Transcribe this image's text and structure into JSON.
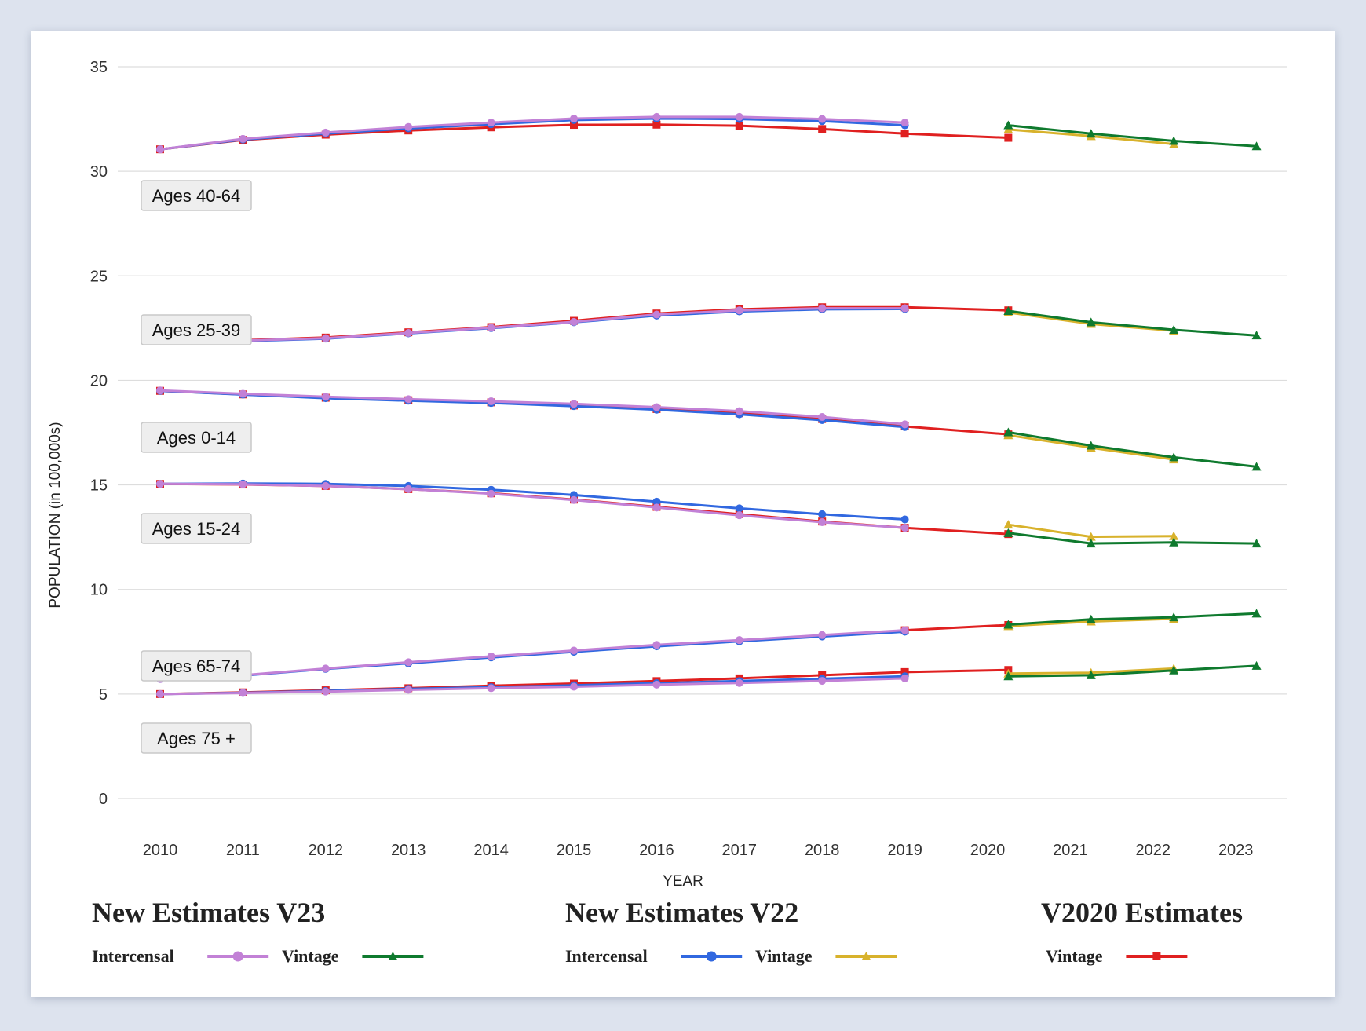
{
  "colors": {
    "v23_intercensal": "#c281d6",
    "v23_vintage": "#0f7a2e",
    "v22_intercensal": "#3168e0",
    "v22_vintage": "#d8b22c",
    "v2020_vintage": "#e02020"
  },
  "chart_data": {
    "type": "line",
    "title": "",
    "xlabel": "YEAR",
    "ylabel": "POPULATION (in 100,000s)",
    "ylim": [
      0,
      35
    ],
    "yticks": [
      "0",
      "5",
      "10",
      "15",
      "20",
      "25",
      "30",
      "35"
    ],
    "xticks": [
      "2010",
      "2011",
      "2012",
      "2013",
      "2014",
      "2015",
      "2016",
      "2017",
      "2018",
      "2019",
      "2020",
      "2021",
      "2022",
      "2023"
    ],
    "grid": true,
    "group_labels": [
      "Ages 40-64",
      "Ages 25-39",
      "Ages 0-14",
      "Ages 15-24",
      "Ages 65-74",
      "Ages 75 +"
    ],
    "legend": {
      "groups": [
        {
          "title": "New Estimates V23",
          "items": [
            {
              "label": "Intercensal",
              "series": "v23_intercensal"
            },
            {
              "label": "Vintage",
              "series": "v23_vintage"
            }
          ]
        },
        {
          "title": "New Estimates V22",
          "items": [
            {
              "label": "Intercensal",
              "series": "v22_intercensal"
            },
            {
              "label": "Vintage",
              "series": "v22_vintage"
            }
          ]
        },
        {
          "title": "V2020 Estimates",
          "items": [
            {
              "label": "Vintage",
              "series": "v2020_vintage"
            }
          ]
        }
      ]
    },
    "groups": [
      {
        "name": "Ages 40-64",
        "v2020_vintage": {
          "x": [
            2010,
            2011,
            2012,
            2013,
            2014,
            2015,
            2016,
            2017,
            2018,
            2019,
            2020
          ],
          "y": [
            31.05,
            31.5,
            31.75,
            31.95,
            32.1,
            32.22,
            32.23,
            32.18,
            32.02,
            31.8,
            31.6
          ]
        },
        "v22_intercensal": {
          "x": [
            2010,
            2011,
            2012,
            2013,
            2014,
            2015,
            2016,
            2017,
            2018,
            2019
          ],
          "y": [
            31.05,
            31.52,
            31.8,
            32.05,
            32.25,
            32.45,
            32.52,
            32.5,
            32.4,
            32.2
          ]
        },
        "v23_intercensal": {
          "x": [
            2010,
            2011,
            2012,
            2013,
            2014,
            2015,
            2016,
            2017,
            2018,
            2019
          ],
          "y": [
            31.05,
            31.55,
            31.85,
            32.12,
            32.33,
            32.52,
            32.6,
            32.6,
            32.5,
            32.33
          ]
        },
        "v22_vintage": {
          "x": [
            2020,
            2021,
            2022
          ],
          "y": [
            32.0,
            31.68,
            31.3
          ]
        },
        "v23_vintage": {
          "x": [
            2020,
            2021,
            2022,
            2023
          ],
          "y": [
            32.2,
            31.8,
            31.45,
            31.2
          ]
        }
      },
      {
        "name": "Ages 25-39",
        "v2020_vintage": {
          "x": [
            2010,
            2011,
            2012,
            2013,
            2014,
            2015,
            2016,
            2017,
            2018,
            2019,
            2020
          ],
          "y": [
            21.9,
            21.92,
            22.05,
            22.3,
            22.55,
            22.85,
            23.2,
            23.4,
            23.5,
            23.5,
            23.35
          ]
        },
        "v22_intercensal": {
          "x": [
            2010,
            2011,
            2012,
            2013,
            2014,
            2015,
            2016,
            2017,
            2018,
            2019
          ],
          "y": [
            21.88,
            21.88,
            22.0,
            22.25,
            22.5,
            22.78,
            23.1,
            23.3,
            23.4,
            23.42
          ]
        },
        "v23_intercensal": {
          "x": [
            2010,
            2011,
            2012,
            2013,
            2014,
            2015,
            2016,
            2017,
            2018,
            2019
          ],
          "y": [
            21.88,
            21.9,
            22.02,
            22.27,
            22.52,
            22.8,
            23.15,
            23.35,
            23.45,
            23.45
          ]
        },
        "v22_vintage": {
          "x": [
            2020,
            2021,
            2022
          ],
          "y": [
            23.25,
            22.7,
            22.38
          ]
        },
        "v23_vintage": {
          "x": [
            2020,
            2021,
            2022,
            2023
          ],
          "y": [
            23.32,
            22.78,
            22.42,
            22.15
          ]
        }
      },
      {
        "name": "Ages 0-14",
        "v2020_vintage": {
          "x": [
            2010,
            2011,
            2012,
            2013,
            2014,
            2015,
            2016,
            2017,
            2018,
            2019,
            2020
          ],
          "y": [
            19.5,
            19.33,
            19.17,
            19.05,
            18.95,
            18.8,
            18.63,
            18.43,
            18.15,
            17.8,
            17.42
          ]
        },
        "v22_intercensal": {
          "x": [
            2010,
            2011,
            2012,
            2013,
            2014,
            2015,
            2016,
            2017,
            2018,
            2019
          ],
          "y": [
            19.5,
            19.32,
            19.15,
            19.03,
            18.92,
            18.77,
            18.6,
            18.38,
            18.1,
            17.77
          ]
        },
        "v23_intercensal": {
          "x": [
            2010,
            2011,
            2012,
            2013,
            2014,
            2015,
            2016,
            2017,
            2018,
            2019
          ],
          "y": [
            19.52,
            19.36,
            19.22,
            19.1,
            19.0,
            18.88,
            18.72,
            18.53,
            18.25,
            17.9
          ]
        },
        "v22_vintage": {
          "x": [
            2020,
            2021,
            2022
          ],
          "y": [
            17.38,
            16.78,
            16.22
          ]
        },
        "v23_vintage": {
          "x": [
            2020,
            2021,
            2022,
            2023
          ],
          "y": [
            17.52,
            16.88,
            16.32,
            15.87
          ]
        }
      },
      {
        "name": "Ages 15-24",
        "v2020_vintage": {
          "x": [
            2010,
            2011,
            2012,
            2013,
            2014,
            2015,
            2016,
            2017,
            2018,
            2019,
            2020
          ],
          "y": [
            15.05,
            15.02,
            14.95,
            14.8,
            14.6,
            14.3,
            13.95,
            13.6,
            13.25,
            12.95,
            12.65
          ]
        },
        "v22_intercensal": {
          "x": [
            2010,
            2011,
            2012,
            2013,
            2014,
            2015,
            2016,
            2017,
            2018,
            2019
          ],
          "y": [
            15.05,
            15.07,
            15.05,
            14.95,
            14.77,
            14.52,
            14.2,
            13.88,
            13.6,
            13.35
          ]
        },
        "v23_intercensal": {
          "x": [
            2010,
            2011,
            2012,
            2013,
            2014,
            2015,
            2016,
            2017,
            2018,
            2019
          ],
          "y": [
            15.05,
            15.03,
            14.95,
            14.8,
            14.58,
            14.28,
            13.92,
            13.55,
            13.22,
            12.95
          ]
        },
        "v22_vintage": {
          "x": [
            2020,
            2021,
            2022
          ],
          "y": [
            13.1,
            12.52,
            12.55
          ]
        },
        "v23_vintage": {
          "x": [
            2020,
            2021,
            2022,
            2023
          ],
          "y": [
            12.7,
            12.2,
            12.25,
            12.2
          ]
        }
      },
      {
        "name": "Ages 65-74",
        "v2020_vintage": {
          "x": [
            2019,
            2020
          ],
          "y": [
            8.05,
            8.3
          ]
        },
        "v22_intercensal": {
          "x": [
            2010,
            2011,
            2012,
            2013,
            2014,
            2015,
            2016,
            2017,
            2018,
            2019
          ],
          "y": [
            5.72,
            5.88,
            6.2,
            6.47,
            6.75,
            7.02,
            7.28,
            7.52,
            7.75,
            7.98
          ]
        },
        "v23_intercensal": {
          "x": [
            2010,
            2011,
            2012,
            2013,
            2014,
            2015,
            2016,
            2017,
            2018,
            2019
          ],
          "y": [
            5.72,
            5.9,
            6.22,
            6.52,
            6.8,
            7.08,
            7.35,
            7.58,
            7.82,
            8.05
          ]
        },
        "v22_vintage": {
          "x": [
            2020,
            2021,
            2022
          ],
          "y": [
            8.25,
            8.47,
            8.6
          ]
        },
        "v23_vintage": {
          "x": [
            2020,
            2021,
            2022,
            2023
          ],
          "y": [
            8.32,
            8.57,
            8.67,
            8.85
          ]
        }
      },
      {
        "name": "Ages 75 +",
        "v2020_vintage": {
          "x": [
            2010,
            2011,
            2012,
            2013,
            2014,
            2015,
            2016,
            2017,
            2018,
            2019,
            2020
          ],
          "y": [
            5.0,
            5.08,
            5.18,
            5.28,
            5.4,
            5.5,
            5.62,
            5.75,
            5.9,
            6.05,
            6.15
          ]
        },
        "v22_intercensal": {
          "x": [
            2010,
            2011,
            2012,
            2013,
            2014,
            2015,
            2016,
            2017,
            2018,
            2019
          ],
          "y": [
            5.0,
            5.06,
            5.15,
            5.25,
            5.33,
            5.42,
            5.52,
            5.62,
            5.73,
            5.85
          ]
        },
        "v23_intercensal": {
          "x": [
            2010,
            2011,
            2012,
            2013,
            2014,
            2015,
            2016,
            2017,
            2018,
            2019
          ],
          "y": [
            5.0,
            5.05,
            5.12,
            5.2,
            5.28,
            5.35,
            5.45,
            5.53,
            5.63,
            5.75
          ]
        },
        "v22_vintage": {
          "x": [
            2020,
            2021,
            2022
          ],
          "y": [
            5.98,
            6.02,
            6.22
          ]
        },
        "v23_vintage": {
          "x": [
            2020,
            2021,
            2022,
            2023
          ],
          "y": [
            5.85,
            5.9,
            6.13,
            6.35
          ]
        }
      }
    ]
  }
}
